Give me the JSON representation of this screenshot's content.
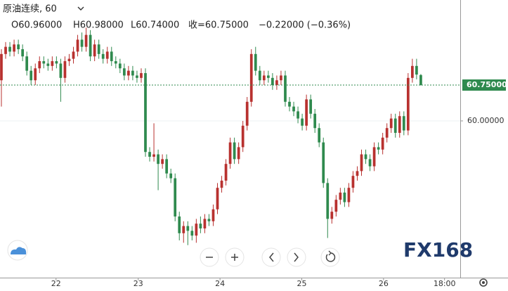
{
  "header": {
    "symbol": "原油连续, 60",
    "open": "O60.96000",
    "high": "H60.98000",
    "low": "L60.74000",
    "close": "收=60.75000",
    "change": "−0.22000 (−0.36%)"
  },
  "logo": "FX168",
  "chart_data": {
    "type": "candlestick",
    "up_color": "#b8312f",
    "down_color": "#2f8a4e",
    "ylim": [
      56.72,
      62.53
    ],
    "yticks": [
      {
        "value": 60,
        "label": "60.00000"
      }
    ],
    "last_price": {
      "value": 60.75,
      "label": "60.75000",
      "color": "#2f8a4e"
    },
    "xlim": [
      -0.33,
      108.3
    ],
    "xticks": [
      {
        "value": 12.9,
        "label": "22"
      },
      {
        "value": 32.3,
        "label": "23"
      },
      {
        "value": 51.6,
        "label": "24"
      },
      {
        "value": 70.9,
        "label": "25"
      },
      {
        "value": 90.2,
        "label": "26"
      },
      {
        "value": 104.6,
        "label": "18:00"
      }
    ],
    "open": [
      60.85,
      61.4,
      61.55,
      61.45,
      61.6,
      61.5,
      61.35,
      61.05,
      60.85,
      61.1,
      61.25,
      61.2,
      61.15,
      61.25,
      61.2,
      60.9,
      61.25,
      61.3,
      61.45,
      61.7,
      61.55,
      61.8,
      61.35,
      61.6,
      61.4,
      61.3,
      61.45,
      61.25,
      61.2,
      61.1,
      60.95,
      61.05,
      60.95,
      60.9,
      61.0,
      59.35,
      59.25,
      59.3,
      59.1,
      59.2,
      58.9,
      58.8,
      58.0,
      57.65,
      57.8,
      57.7,
      57.6,
      57.85,
      57.75,
      57.95,
      57.9,
      58.15,
      58.6,
      58.75,
      59.1,
      59.55,
      59.2,
      59.45,
      59.9,
      60.4,
      61.4,
      61.05,
      60.85,
      60.95,
      60.9,
      60.75,
      60.85,
      60.95,
      60.4,
      60.3,
      60.2,
      60.05,
      59.9,
      60.45,
      60.15,
      59.85,
      59.55,
      58.7,
      57.95,
      58.1,
      58.35,
      58.5,
      58.3,
      58.6,
      58.85,
      58.95,
      59.3,
      59.2,
      59.05,
      59.45,
      59.4,
      59.65,
      59.85,
      60.05,
      59.75,
      60.1,
      59.8,
      60.9,
      61.15,
      60.96
    ],
    "high": [
      61.5,
      61.65,
      61.65,
      61.7,
      61.7,
      61.6,
      61.45,
      61.15,
      61.2,
      61.35,
      61.35,
      61.3,
      61.35,
      61.35,
      61.3,
      61.35,
      61.4,
      61.55,
      61.8,
      61.85,
      61.95,
      61.9,
      61.7,
      61.7,
      61.5,
      61.55,
      61.55,
      61.35,
      61.3,
      61.2,
      61.15,
      61.15,
      61.05,
      61.1,
      61.1,
      59.45,
      59.95,
      59.4,
      59.3,
      59.3,
      59.0,
      58.9,
      58.1,
      57.9,
      57.9,
      57.8,
      57.95,
      58.0,
      58.05,
      58.05,
      58.25,
      58.7,
      58.85,
      59.2,
      59.65,
      59.65,
      59.55,
      60.0,
      60.5,
      61.5,
      61.55,
      61.15,
      61.05,
      61.05,
      61.0,
      60.95,
      61.05,
      61.05,
      60.5,
      60.4,
      60.3,
      60.15,
      60.55,
      60.55,
      60.25,
      59.95,
      59.65,
      58.8,
      58.2,
      58.45,
      58.6,
      58.6,
      58.7,
      58.95,
      59.05,
      59.4,
      59.4,
      59.3,
      59.55,
      59.55,
      59.75,
      59.95,
      60.15,
      60.15,
      60.2,
      60.2,
      61.0,
      61.3,
      61.3,
      60.98
    ],
    "low": [
      60.3,
      61.3,
      61.35,
      61.35,
      61.4,
      61.25,
      60.95,
      60.75,
      60.75,
      61.0,
      61.1,
      61.05,
      61.05,
      61.1,
      60.4,
      60.8,
      61.15,
      61.2,
      61.35,
      61.45,
      61.45,
      61.25,
      61.25,
      61.3,
      61.2,
      61.2,
      61.15,
      61.1,
      61.0,
      60.85,
      60.85,
      60.85,
      60.8,
      60.8,
      59.25,
      59.15,
      59.15,
      58.55,
      59.0,
      58.8,
      58.7,
      57.9,
      57.5,
      57.45,
      57.4,
      57.5,
      57.45,
      57.65,
      57.65,
      57.8,
      57.8,
      58.05,
      58.5,
      58.65,
      59.0,
      59.1,
      59.1,
      59.35,
      59.8,
      60.3,
      60.95,
      60.75,
      60.75,
      60.8,
      60.65,
      60.65,
      60.75,
      60.3,
      60.2,
      60.1,
      59.95,
      59.8,
      59.8,
      60.05,
      59.75,
      59.45,
      58.6,
      57.55,
      57.85,
      58.0,
      58.25,
      58.2,
      58.2,
      58.5,
      58.75,
      58.85,
      59.1,
      58.95,
      58.95,
      59.3,
      59.3,
      59.55,
      59.75,
      59.65,
      59.65,
      59.7,
      59.7,
      60.8,
      60.87,
      60.74
    ],
    "close": [
      61.4,
      61.55,
      61.45,
      61.6,
      61.5,
      61.35,
      61.05,
      60.85,
      61.1,
      61.25,
      61.2,
      61.15,
      61.25,
      61.2,
      60.9,
      61.25,
      61.3,
      61.45,
      61.7,
      61.55,
      61.8,
      61.35,
      61.6,
      61.4,
      61.3,
      61.45,
      61.25,
      61.2,
      61.1,
      60.95,
      61.05,
      60.95,
      60.9,
      61.0,
      59.35,
      59.25,
      59.3,
      59.1,
      59.2,
      58.9,
      58.8,
      58.0,
      57.65,
      57.8,
      57.7,
      57.6,
      57.85,
      57.75,
      57.95,
      57.9,
      58.15,
      58.6,
      58.75,
      59.1,
      59.55,
      59.2,
      59.45,
      59.9,
      60.4,
      61.4,
      61.05,
      60.85,
      60.95,
      60.9,
      60.75,
      60.85,
      60.95,
      60.4,
      60.3,
      60.2,
      60.05,
      59.9,
      60.45,
      60.15,
      59.85,
      59.55,
      58.7,
      57.95,
      58.1,
      58.35,
      58.5,
      58.3,
      58.6,
      58.85,
      58.95,
      59.3,
      59.2,
      59.05,
      59.45,
      59.4,
      59.65,
      59.85,
      60.05,
      59.75,
      60.1,
      59.8,
      60.9,
      61.15,
      60.97,
      60.75
    ]
  }
}
